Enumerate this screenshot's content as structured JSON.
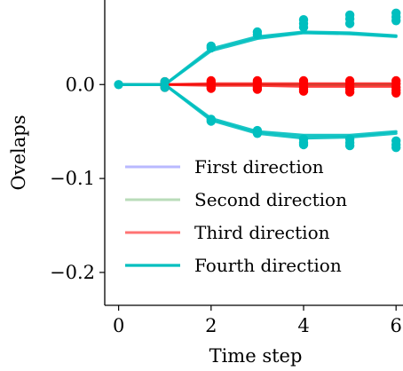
{
  "chart_data": {
    "type": "line",
    "xlabel": "Time step",
    "ylabel": "Ovelaps",
    "xlim": [
      -0.3,
      6.15
    ],
    "ylim": [
      -0.235,
      0.09
    ],
    "xticks": [
      0,
      2,
      4,
      6
    ],
    "xtick_labels": [
      "0",
      "2",
      "4",
      "6"
    ],
    "yticks": [
      0.0,
      -0.1,
      -0.2
    ],
    "ytick_labels": [
      "0.0",
      "−0.1",
      "−0.2"
    ],
    "grid": false,
    "legend_position": "lower-left",
    "series": [
      {
        "name": "First direction",
        "color": "#8080ff",
        "lines": [
          [
            [
              0,
              0.0
            ],
            [
              1,
              0.0
            ],
            [
              2,
              0.0
            ],
            [
              3,
              0.0
            ],
            [
              4,
              0.0
            ],
            [
              5,
              0.0
            ],
            [
              6,
              0.0
            ]
          ]
        ],
        "points": [
          [
            0,
            0.0
          ],
          [
            1,
            0.0
          ],
          [
            2,
            0.0
          ],
          [
            3,
            0.0
          ],
          [
            4,
            0.0
          ],
          [
            5,
            0.0
          ],
          [
            6,
            0.0
          ]
        ]
      },
      {
        "name": "Second direction",
        "color": "#7fbf7f",
        "lines": [
          [
            [
              0,
              0.0
            ],
            [
              1,
              0.0
            ],
            [
              2,
              0.0
            ],
            [
              3,
              0.0
            ],
            [
              4,
              0.0
            ],
            [
              5,
              0.0
            ],
            [
              6,
              0.0
            ]
          ]
        ],
        "points": [
          [
            0,
            0.0
          ],
          [
            1,
            0.0
          ],
          [
            2,
            0.0
          ],
          [
            3,
            0.0
          ],
          [
            4,
            0.0
          ],
          [
            5,
            0.0
          ],
          [
            6,
            0.0
          ]
        ]
      },
      {
        "name": "Third direction",
        "color": "#ff0000",
        "lines": [
          [
            [
              0,
              0.0
            ],
            [
              1,
              0.0
            ],
            [
              2,
              -0.001
            ],
            [
              3,
              -0.001
            ],
            [
              4,
              -0.002
            ],
            [
              5,
              -0.002
            ],
            [
              6,
              -0.002
            ]
          ],
          [
            [
              0,
              0.0
            ],
            [
              1,
              0.0
            ],
            [
              2,
              0.001
            ],
            [
              3,
              0.001
            ],
            [
              4,
              0.001
            ],
            [
              5,
              0.001
            ],
            [
              6,
              0.001
            ]
          ]
        ],
        "points": [
          [
            1,
            0.003
          ],
          [
            1,
            -0.003
          ],
          [
            2,
            0.004
          ],
          [
            2,
            0.002
          ],
          [
            2,
            -0.002
          ],
          [
            2,
            -0.004
          ],
          [
            3,
            0.004
          ],
          [
            3,
            0.002
          ],
          [
            3,
            -0.003
          ],
          [
            3,
            -0.005
          ],
          [
            4,
            0.004
          ],
          [
            4,
            0.001
          ],
          [
            4,
            -0.003
          ],
          [
            4,
            -0.005
          ],
          [
            4,
            -0.007
          ],
          [
            5,
            0.004
          ],
          [
            5,
            0.001
          ],
          [
            5,
            -0.003
          ],
          [
            5,
            -0.005
          ],
          [
            5,
            -0.008
          ],
          [
            6,
            0.004
          ],
          [
            6,
            0.001
          ],
          [
            6,
            -0.003
          ],
          [
            6,
            -0.006
          ],
          [
            6,
            -0.009
          ]
        ]
      },
      {
        "name": "Fourth direction",
        "color": "#00bfbf",
        "lines": [
          [
            [
              0,
              0.0
            ],
            [
              1,
              0.0
            ],
            [
              2,
              0.036
            ],
            [
              3,
              0.049
            ],
            [
              4,
              0.055
            ],
            [
              5,
              0.054
            ],
            [
              6,
              0.051
            ]
          ],
          [
            [
              0,
              0.0
            ],
            [
              1,
              0.0
            ],
            [
              2,
              0.038
            ],
            [
              3,
              0.051
            ],
            [
              4,
              0.056
            ],
            [
              5,
              0.055
            ],
            [
              6,
              0.052
            ]
          ],
          [
            [
              0,
              0.0
            ],
            [
              1,
              0.0
            ],
            [
              2,
              -0.036
            ],
            [
              3,
              -0.05
            ],
            [
              4,
              -0.054
            ],
            [
              5,
              -0.054
            ],
            [
              6,
              -0.05
            ]
          ],
          [
            [
              0,
              0.0
            ],
            [
              1,
              0.0
            ],
            [
              2,
              -0.038
            ],
            [
              3,
              -0.052
            ],
            [
              4,
              -0.057
            ],
            [
              5,
              -0.056
            ],
            [
              6,
              -0.052
            ]
          ]
        ],
        "points": [
          [
            0,
            0.0
          ],
          [
            1,
            0.003
          ],
          [
            1,
            -0.003
          ],
          [
            2,
            0.041
          ],
          [
            2,
            0.039
          ],
          [
            2,
            -0.037
          ],
          [
            2,
            -0.039
          ],
          [
            3,
            0.056
          ],
          [
            3,
            0.053
          ],
          [
            3,
            -0.049
          ],
          [
            3,
            -0.052
          ],
          [
            4,
            0.069
          ],
          [
            4,
            0.065
          ],
          [
            4,
            0.061
          ],
          [
            4,
            -0.058
          ],
          [
            4,
            -0.062
          ],
          [
            4,
            -0.064
          ],
          [
            5,
            0.074
          ],
          [
            5,
            0.07
          ],
          [
            5,
            0.065
          ],
          [
            5,
            -0.058
          ],
          [
            5,
            -0.062
          ],
          [
            5,
            -0.065
          ],
          [
            6,
            0.076
          ],
          [
            6,
            0.072
          ],
          [
            6,
            0.068
          ],
          [
            6,
            -0.06
          ],
          [
            6,
            -0.064
          ],
          [
            6,
            -0.067
          ]
        ]
      }
    ]
  }
}
